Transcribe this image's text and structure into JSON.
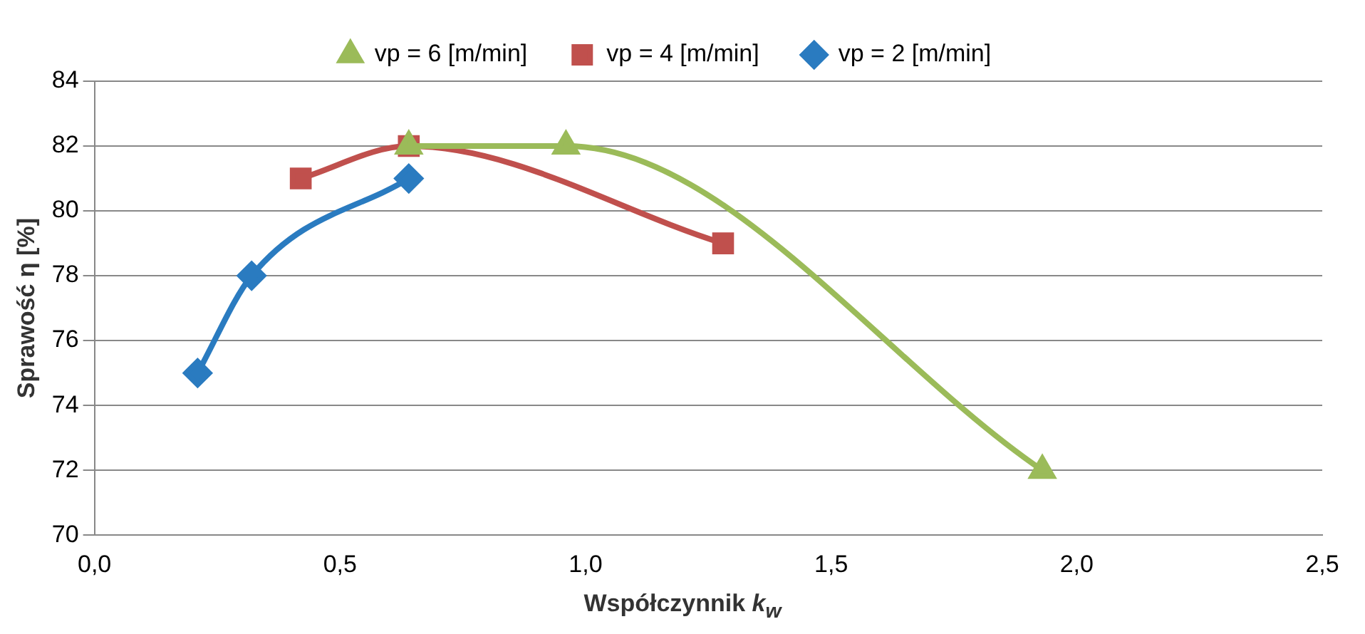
{
  "chart_data": {
    "type": "line",
    "xlabel": "Współczynnik k$_{w}$",
    "ylabel": "Sprawość η [%]",
    "series": [
      {
        "name": "vp = 2 [m/min]",
        "color": "#2a7bc0",
        "marker": "diamond",
        "x": [
          0.21,
          0.32,
          0.64
        ],
        "values": [
          75,
          78,
          81
        ]
      },
      {
        "name": "vp = 4 [m/min]",
        "color": "#c0504d",
        "marker": "square",
        "x": [
          0.42,
          0.64,
          1.28
        ],
        "values": [
          81,
          82,
          79
        ]
      },
      {
        "name": "vp = 6 [m/min]",
        "color": "#9bbb59",
        "marker": "triangle",
        "x": [
          0.64,
          0.96,
          1.93
        ],
        "values": [
          82,
          82,
          72
        ]
      }
    ],
    "xlim": [
      0,
      2.5
    ],
    "xticks": [
      {
        "value": 0,
        "label": "0,0"
      },
      {
        "value": 0.5,
        "label": "0,5"
      },
      {
        "value": 1,
        "label": "1,0"
      },
      {
        "value": 1.5,
        "label": "1,5"
      },
      {
        "value": 2,
        "label": "2,0"
      },
      {
        "value": 2.5,
        "label": "2,5"
      }
    ],
    "ylim": [
      70,
      84
    ],
    "yticks": [
      70,
      72,
      74,
      76,
      78,
      80,
      82,
      84
    ],
    "grid": "y",
    "legend": "top",
    "line_style": "solid"
  }
}
